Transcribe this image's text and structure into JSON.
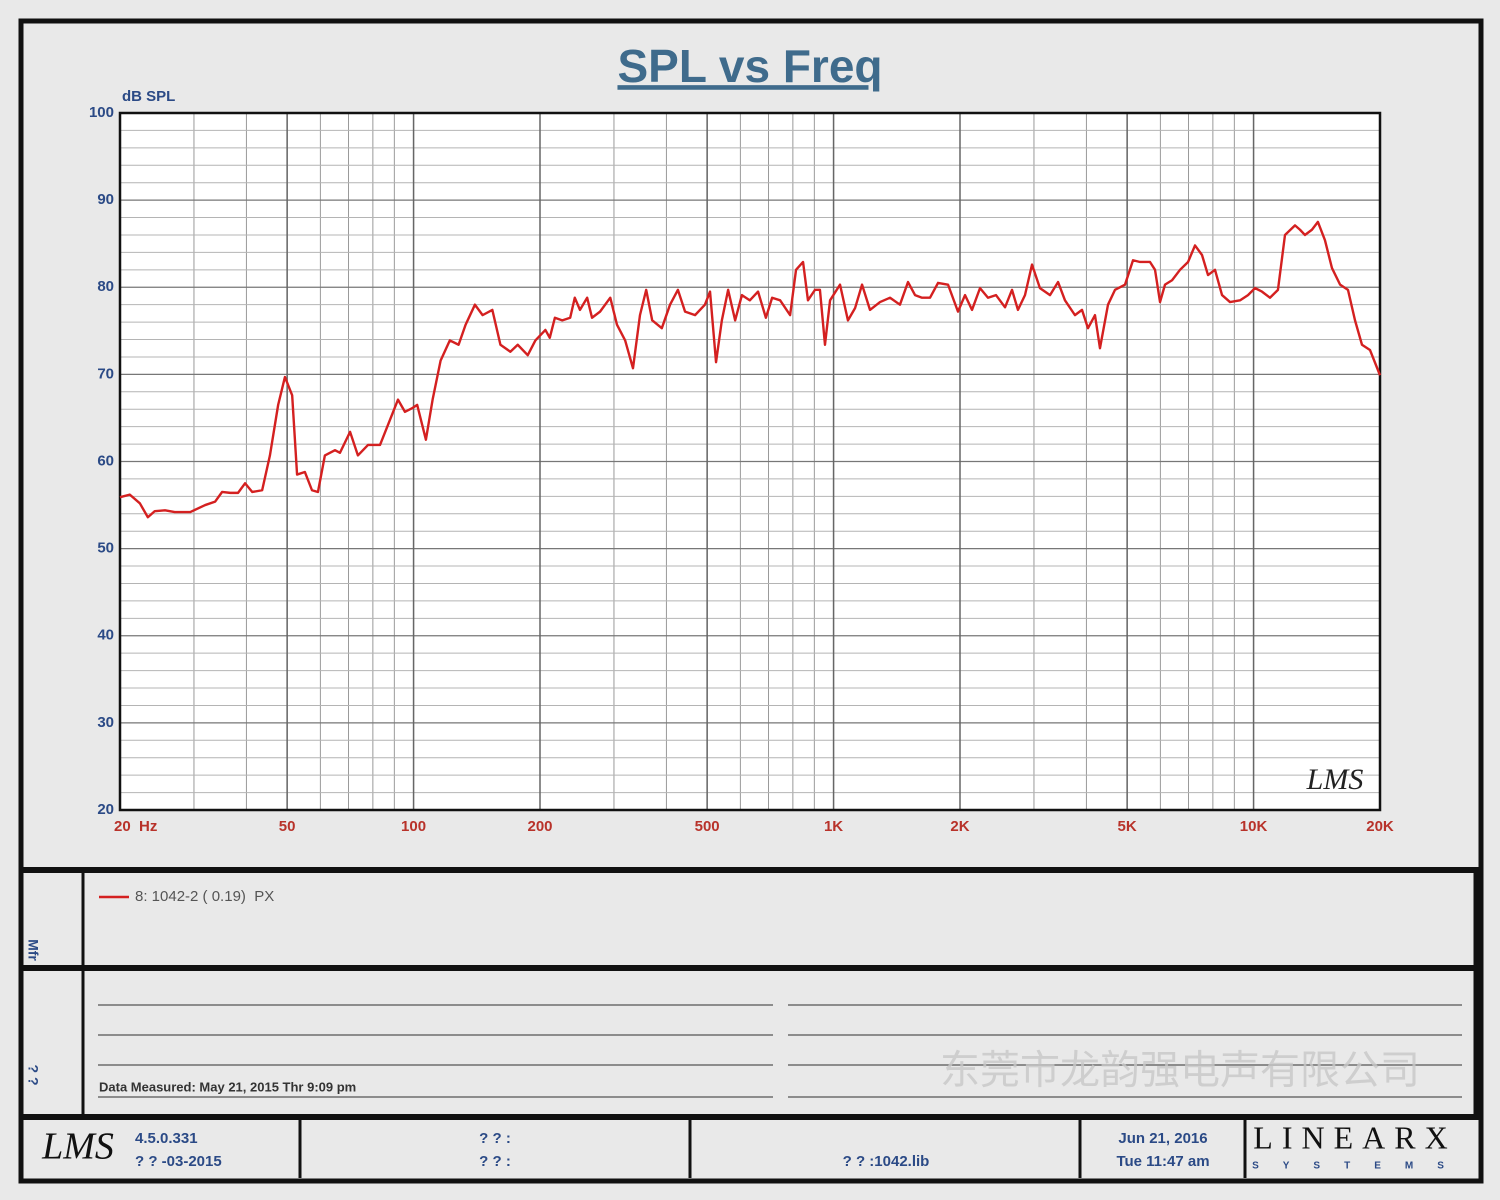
{
  "chart_data": {
    "type": "line",
    "title": "SPL vs Freq",
    "y_label": "dB SPL",
    "logo": "LMS",
    "x_log": true,
    "grid": true,
    "minor_grid": true,
    "xlim": [
      20,
      20000
    ],
    "ylim": [
      20,
      100
    ],
    "xticks": [
      {
        "value": 20,
        "label": "20  Hz"
      },
      50,
      100,
      200,
      500,
      {
        "value": 1000,
        "label": "1K"
      },
      {
        "value": 2000,
        "label": "2K"
      },
      {
        "value": 5000,
        "label": "5K"
      },
      {
        "value": 10000,
        "label": "10K"
      },
      {
        "value": 20000,
        "label": "20K"
      }
    ],
    "yticks": [
      20,
      30,
      40,
      50,
      60,
      70,
      80,
      90,
      100
    ],
    "x": [
      20,
      21.1,
      22.3,
      23.3,
      24.2,
      25.6,
      27.0,
      29.4,
      31.9,
      33.7,
      35.0,
      36.6,
      38.2,
      39.7,
      41.3,
      43.6,
      45.5,
      47.6,
      49.4,
      51.4,
      52.8,
      55.1,
      57.3,
      59.2,
      61.5,
      65.0,
      66.8,
      70.6,
      73.7,
      77.9,
      83.2,
      87.9,
      91.8,
      95.4,
      99.1,
      102,
      107,
      111,
      116,
      122,
      128,
      133,
      140,
      146,
      154,
      161,
      170,
      177,
      187,
      195,
      206,
      211,
      217,
      226,
      236,
      242,
      249,
      259,
      266,
      278,
      294,
      305,
      319,
      333,
      346,
      358,
      370,
      390,
      408,
      426,
      443,
      468,
      494,
      508,
      525,
      542,
      561,
      583,
      605,
      632,
      661,
      690,
      714,
      746,
      788,
      814,
      846,
      869,
      903,
      928,
      954,
      981,
      1036,
      1082,
      1125,
      1169,
      1221,
      1290,
      1363,
      1439,
      1504,
      1563,
      1624,
      1697,
      1773,
      1873,
      1978,
      2056,
      2136,
      2232,
      2332,
      2436,
      2560,
      2660,
      2748,
      2856,
      2968,
      3100,
      3276,
      3424,
      3556,
      3756,
      3904,
      4034,
      4192,
      4308,
      4502,
      4678,
      4942,
      5164,
      5366,
      5668,
      5826,
      5988,
      6154,
      6396,
      6682,
      6982,
      7254,
      7538,
      7790,
      8094,
      8412,
      8788,
      9284,
      9700,
      10080,
      10470,
      10940,
      11430,
      11880,
      12550,
      12900,
      13250,
      13770,
      14230,
      14790,
      15370,
      16070,
      16780,
      17440,
      18120,
      18930,
      20000
    ],
    "series": [
      {
        "name": "8: 1042-2 ( 0.19)  PX",
        "color": "#d42020",
        "values": [
          55.9,
          56.2,
          55.2,
          53.6,
          54.3,
          54.4,
          54.2,
          54.2,
          55.0,
          55.4,
          56.5,
          56.4,
          56.4,
          57.5,
          56.5,
          56.7,
          60.7,
          66.5,
          69.7,
          67.6,
          58.5,
          58.8,
          56.7,
          56.5,
          60.7,
          61.3,
          61.0,
          63.4,
          60.7,
          61.9,
          61.9,
          64.8,
          67.1,
          65.7,
          66.1,
          66.5,
          62.5,
          67.1,
          71.6,
          73.9,
          73.4,
          75.7,
          78.0,
          76.8,
          77.4,
          73.4,
          72.6,
          73.4,
          72.2,
          73.9,
          75.1,
          74.2,
          76.5,
          76.2,
          76.5,
          78.8,
          77.4,
          78.8,
          76.5,
          77.2,
          78.8,
          75.7,
          73.9,
          70.7,
          76.8,
          79.7,
          76.2,
          75.3,
          78.0,
          79.7,
          77.2,
          76.8,
          78.0,
          79.5,
          71.4,
          76.2,
          79.7,
          76.2,
          79.1,
          78.5,
          79.5,
          76.5,
          78.8,
          78.5,
          76.8,
          82.0,
          82.9,
          78.5,
          79.7,
          79.7,
          73.4,
          78.5,
          80.3,
          76.2,
          77.6,
          80.3,
          77.4,
          78.3,
          78.8,
          78.0,
          80.6,
          79.1,
          78.8,
          78.8,
          80.5,
          80.3,
          77.2,
          79.1,
          77.4,
          79.9,
          78.8,
          79.1,
          77.7,
          79.7,
          77.4,
          79.1,
          82.6,
          79.9,
          79.1,
          80.6,
          78.5,
          76.8,
          77.4,
          75.3,
          76.8,
          73.0,
          78.0,
          79.7,
          80.3,
          83.1,
          82.9,
          82.9,
          82.0,
          78.3,
          80.3,
          80.8,
          82.0,
          82.9,
          84.8,
          83.7,
          81.4,
          82.0,
          79.1,
          78.3,
          78.5,
          79.1,
          79.9,
          79.5,
          78.8,
          79.7,
          86.0,
          87.1,
          86.6,
          86.0,
          86.6,
          87.5,
          85.4,
          82.2,
          80.3,
          79.7,
          76.2,
          73.4,
          72.8,
          69.9
        ]
      }
    ]
  },
  "legend_panel": {
    "side_label": "Mfr"
  },
  "notes_panel": {
    "side_label": "? ?",
    "data_measured": "Data Measured: May 21, 2015 Thr 9:09 pm"
  },
  "footer": {
    "logo": "LMS",
    "version": "4.5.0.331",
    "date_code": "? ? -03-2015",
    "field_1": "? ? :",
    "field_2": "? ? :",
    "library": "? ? :1042.lib",
    "print_date": "Jun 21, 2016",
    "print_time": "Tue 11:47 am",
    "brand": "LINEARX",
    "brand_sub": "SYSTEMS"
  },
  "watermark": "东莞市龙韵强电声有限公司"
}
